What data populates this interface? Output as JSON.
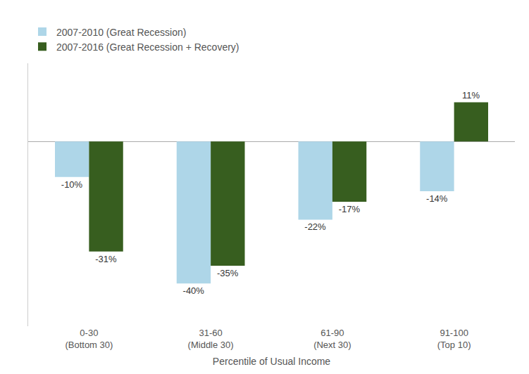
{
  "chart_data": {
    "type": "bar",
    "categories": [
      "0-30\n(Bottom 30)",
      "31-60\n(Middle 30)",
      "61-90\n(Next 30)",
      "91-100\n(Top 10)"
    ],
    "xlabel": "Percentile of Usual Income",
    "ylim": [
      -52,
      22
    ],
    "series": [
      {
        "name": "2007-2010 (Great Recession)",
        "color": "#aed6e8",
        "values": [
          -10,
          -40,
          -22,
          -14
        ],
        "value_labels": [
          "-10%",
          "-40%",
          "-22%",
          "-14%"
        ]
      },
      {
        "name": "2007-2016 (Great Recession + Recovery)",
        "color": "#375e1f",
        "values": [
          -31,
          -35,
          -17,
          11
        ],
        "value_labels": [
          "-31%",
          "-35%",
          "-17%",
          "11%"
        ]
      }
    ],
    "data_labels": true,
    "grid": false,
    "legend": "upper left",
    "tick_labels": "x"
  }
}
